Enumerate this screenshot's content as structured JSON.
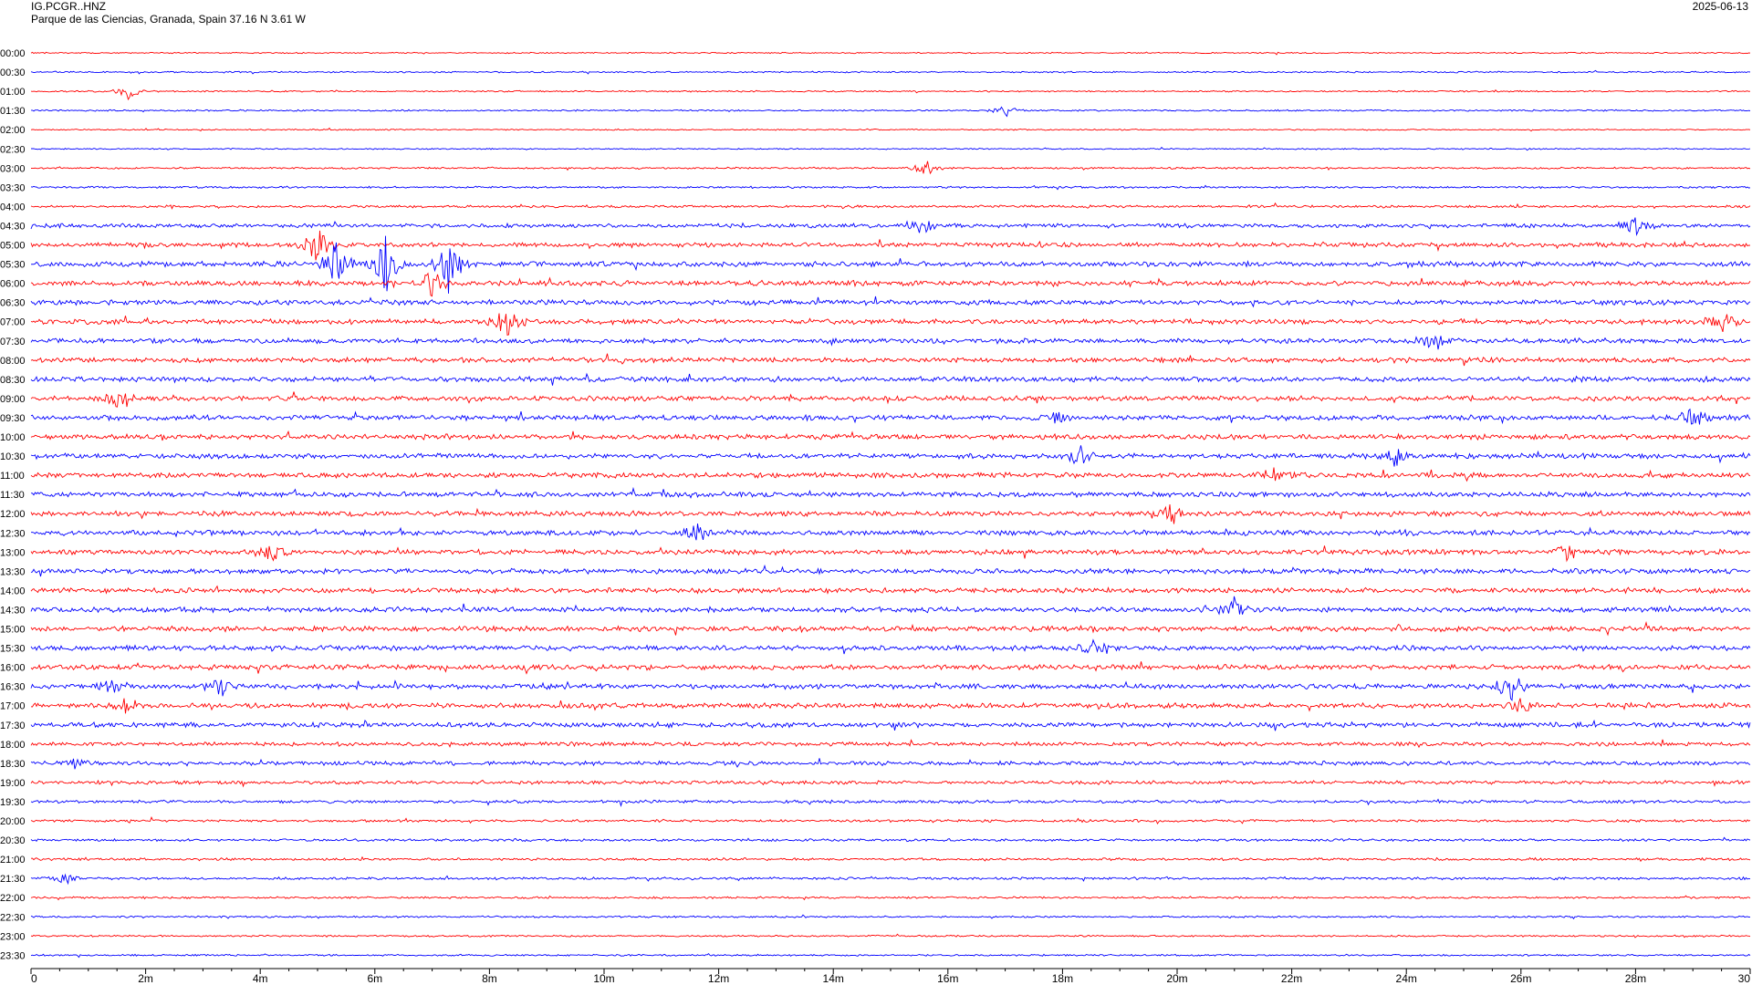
{
  "header": {
    "station": "IG.PCGR..HNZ",
    "location": "Parque de las Ciencias, Granada, Spain  37.16 N 3.61 W",
    "date": "2025-06-13"
  },
  "chart_data": {
    "type": "line",
    "title": "",
    "xlabel": "",
    "ylabel": "",
    "xlim": [
      0,
      30
    ],
    "x_unit": "minutes",
    "x_tick_labels": [
      "0",
      "2m",
      "4m",
      "6m",
      "8m",
      "10m",
      "12m",
      "14m",
      "16m",
      "18m",
      "20m",
      "22m",
      "24m",
      "26m",
      "28m",
      "30"
    ],
    "row_labels": [
      "00:00",
      "00:30",
      "01:00",
      "01:30",
      "02:00",
      "02:30",
      "03:00",
      "03:30",
      "04:00",
      "04:30",
      "05:00",
      "05:30",
      "06:00",
      "06:30",
      "07:00",
      "07:30",
      "08:00",
      "08:30",
      "09:00",
      "09:30",
      "10:00",
      "10:30",
      "11:00",
      "11:30",
      "12:00",
      "12:30",
      "13:00",
      "13:30",
      "14:00",
      "14:30",
      "15:00",
      "15:30",
      "16:00",
      "16:30",
      "17:00",
      "17:30",
      "18:00",
      "18:30",
      "19:00",
      "19:30",
      "20:00",
      "20:30",
      "21:00",
      "21:30",
      "22:00",
      "22:30",
      "23:00",
      "23:30"
    ],
    "colors": {
      "even_rows": "#ff0000",
      "odd_rows": "#0000ff",
      "axis": "#000000"
    },
    "noise_level": [
      0.25,
      0.3,
      0.3,
      0.3,
      0.25,
      0.25,
      0.35,
      0.4,
      0.5,
      0.8,
      0.9,
      1.0,
      1.0,
      1.0,
      1.0,
      1.0,
      1.0,
      1.0,
      1.0,
      1.0,
      1.0,
      1.0,
      1.0,
      1.0,
      1.0,
      1.0,
      1.0,
      1.0,
      1.0,
      1.0,
      1.0,
      1.0,
      1.0,
      1.0,
      1.0,
      1.0,
      0.8,
      0.8,
      0.7,
      0.6,
      0.5,
      0.5,
      0.5,
      0.5,
      0.4,
      0.35,
      0.35,
      0.35
    ],
    "events": [
      {
        "row": 2,
        "minute": 1.7,
        "amplitude": 1.5
      },
      {
        "row": 3,
        "minute": 17.0,
        "amplitude": 1.3
      },
      {
        "row": 6,
        "minute": 15.6,
        "amplitude": 1.8
      },
      {
        "row": 9,
        "minute": 15.5,
        "amplitude": 2.0
      },
      {
        "row": 9,
        "minute": 28.0,
        "amplitude": 2.0
      },
      {
        "row": 10,
        "minute": 5.0,
        "amplitude": 4.0
      },
      {
        "row": 11,
        "minute": 5.3,
        "amplitude": 5.0
      },
      {
        "row": 11,
        "minute": 6.2,
        "amplitude": 6.0
      },
      {
        "row": 11,
        "minute": 7.3,
        "amplitude": 6.0
      },
      {
        "row": 12,
        "minute": 7.0,
        "amplitude": 3.0
      },
      {
        "row": 14,
        "minute": 8.3,
        "amplitude": 3.5
      },
      {
        "row": 14,
        "minute": 29.5,
        "amplitude": 2.0
      },
      {
        "row": 15,
        "minute": 24.5,
        "amplitude": 2.0
      },
      {
        "row": 18,
        "minute": 1.5,
        "amplitude": 2.2
      },
      {
        "row": 19,
        "minute": 17.8,
        "amplitude": 1.8
      },
      {
        "row": 19,
        "minute": 29.0,
        "amplitude": 2.0
      },
      {
        "row": 21,
        "minute": 18.3,
        "amplitude": 2.2
      },
      {
        "row": 21,
        "minute": 23.8,
        "amplitude": 2.0
      },
      {
        "row": 22,
        "minute": 21.7,
        "amplitude": 1.8
      },
      {
        "row": 24,
        "minute": 19.9,
        "amplitude": 2.2
      },
      {
        "row": 25,
        "minute": 11.6,
        "amplitude": 2.0
      },
      {
        "row": 26,
        "minute": 4.2,
        "amplitude": 2.0
      },
      {
        "row": 26,
        "minute": 26.8,
        "amplitude": 1.8
      },
      {
        "row": 29,
        "minute": 21.0,
        "amplitude": 2.5
      },
      {
        "row": 31,
        "minute": 18.6,
        "amplitude": 2.2
      },
      {
        "row": 33,
        "minute": 1.4,
        "amplitude": 2.0
      },
      {
        "row": 33,
        "minute": 3.3,
        "amplitude": 2.0
      },
      {
        "row": 33,
        "minute": 25.8,
        "amplitude": 3.5
      },
      {
        "row": 34,
        "minute": 1.7,
        "amplitude": 1.8
      },
      {
        "row": 34,
        "minute": 26.0,
        "amplitude": 2.0
      },
      {
        "row": 37,
        "minute": 0.8,
        "amplitude": 1.2
      },
      {
        "row": 43,
        "minute": 0.6,
        "amplitude": 1.3
      }
    ]
  }
}
